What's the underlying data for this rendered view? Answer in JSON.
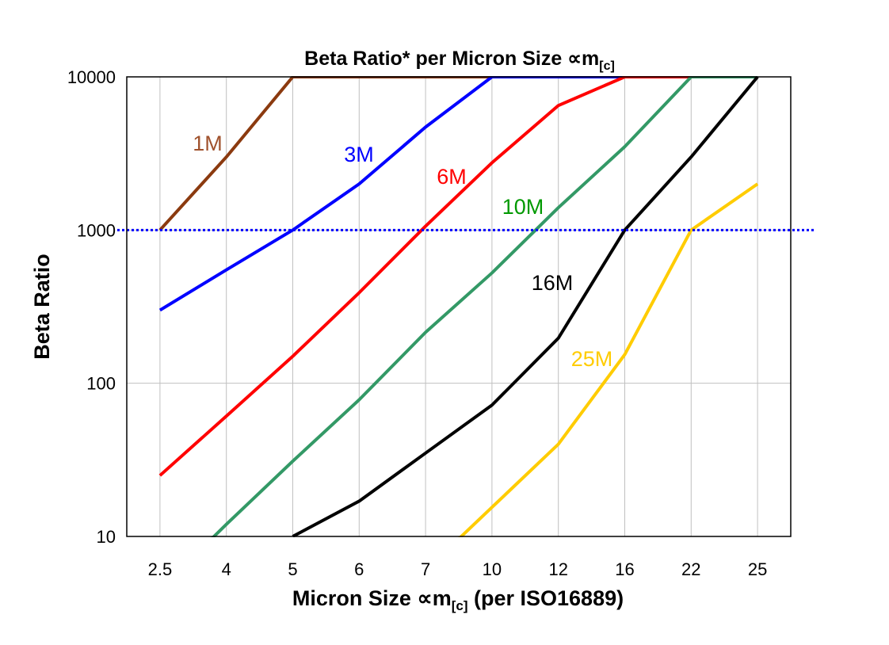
{
  "chart_data": {
    "type": "line",
    "title": "Beta Ratio* per Micron Size ∝m",
    "title_subscript": "[c]",
    "xlabel": "Micron Size ∝m",
    "xlabel_subscript": "[c]",
    "xlabel_suffix": " (per ISO16889)",
    "ylabel": "Beta Ratio",
    "y_scale": "log",
    "ylim": [
      10,
      10000
    ],
    "yticks": [
      "10",
      "100",
      "1000",
      "10000"
    ],
    "categories": [
      "2.5",
      "4",
      "5",
      "6",
      "7",
      "10",
      "12",
      "16",
      "22",
      "25"
    ],
    "grid": true,
    "reference_line": {
      "value": 1000,
      "style": "dotted",
      "color": "#0000ff"
    },
    "series": [
      {
        "name": "1M",
        "color": "#8b3a0f",
        "label_color": "#a0522d",
        "values": [
          1000,
          3000,
          10000,
          10000,
          10000,
          10000,
          10000,
          10000,
          10000,
          10000
        ]
      },
      {
        "name": "3M",
        "color": "#0000ff",
        "label_color": "#0000ff",
        "values": [
          300,
          550,
          1000,
          2000,
          4700,
          10000,
          10000,
          10000,
          10000,
          10000
        ]
      },
      {
        "name": "6M",
        "color": "#ff0000",
        "label_color": "#ff0000",
        "values": [
          25,
          61,
          150,
          390,
          1060,
          2750,
          6500,
          10000,
          10000,
          10000
        ]
      },
      {
        "name": "10M",
        "color": "#339966",
        "label_color": "#009900",
        "values": [
          4.5,
          12,
          31,
          78,
          215,
          525,
          1400,
          3500,
          10000,
          10000
        ]
      },
      {
        "name": "16M",
        "color": "#000000",
        "label_color": "#000000",
        "values": [
          null,
          null,
          10,
          17,
          35,
          72,
          197,
          1000,
          3000,
          10000
        ]
      },
      {
        "name": "25M",
        "color": "#ffcc00",
        "label_color": "#ffcc00",
        "values": [
          null,
          null,
          null,
          null,
          6,
          15.5,
          40,
          154,
          1000,
          2000
        ]
      }
    ]
  }
}
